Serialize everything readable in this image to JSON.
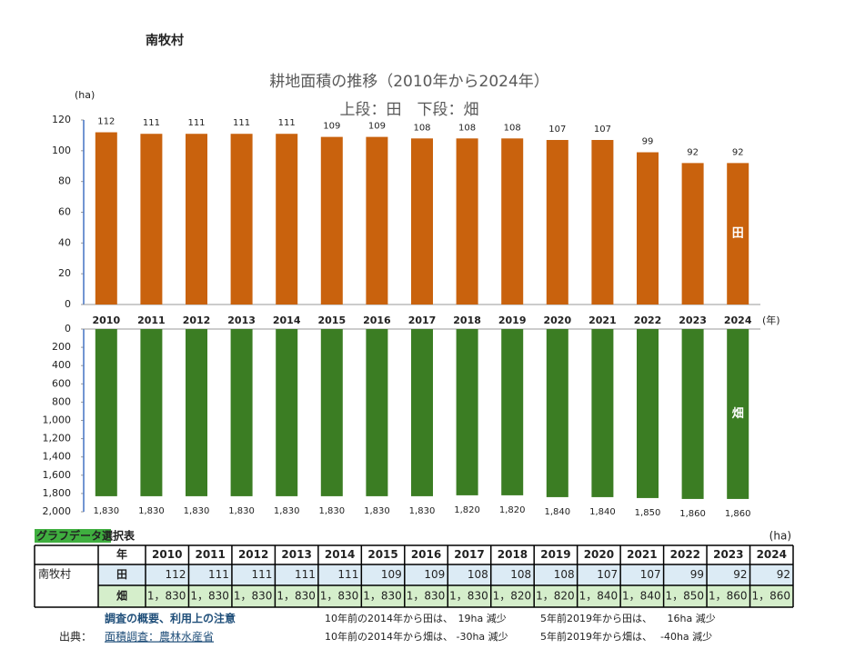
{
  "page_title": "南牧村",
  "chart_data": [
    {
      "type": "bar",
      "title": "耕地面積の推移（2010年から2024年）",
      "subtitle": "上段：田　下段：畑",
      "y_label": "(ha)",
      "x_label": "(年)",
      "categories": [
        "2010",
        "2011",
        "2012",
        "2013",
        "2014",
        "2015",
        "2016",
        "2017",
        "2018",
        "2019",
        "2020",
        "2021",
        "2022",
        "2023",
        "2024"
      ],
      "series": [
        {
          "name": "田",
          "color": "#c9620d",
          "values": [
            112,
            111,
            111,
            111,
            111,
            109,
            109,
            108,
            108,
            108,
            107,
            107,
            99,
            92,
            92
          ]
        }
      ],
      "ylim": [
        0,
        120
      ],
      "yticks": [
        0,
        20,
        40,
        60,
        80,
        100,
        120
      ],
      "grid": false,
      "inverted": false
    },
    {
      "type": "bar",
      "series": [
        {
          "name": "畑",
          "color": "#3b7d23",
          "values": [
            1830,
            1830,
            1830,
            1830,
            1830,
            1830,
            1830,
            1830,
            1820,
            1820,
            1840,
            1840,
            1850,
            1860,
            1860
          ],
          "value_labels": [
            "1,830",
            "1,830",
            "1,830",
            "1,830",
            "1,830",
            "1,830",
            "1,830",
            "1,830",
            "1,820",
            "1,820",
            "1,840",
            "1,840",
            "1,850",
            "1,860",
            "1,860"
          ]
        }
      ],
      "ylim": [
        0,
        2000
      ],
      "yticks": [
        0,
        200,
        400,
        600,
        800,
        {
          "value": 1000,
          "label": "1,000"
        },
        {
          "value": 1200,
          "label": "1,200"
        },
        {
          "value": 1400,
          "label": "1,400"
        },
        {
          "value": 1600,
          "label": "1,600"
        },
        {
          "value": 1800,
          "label": "1,800"
        },
        {
          "value": 2000,
          "label": "2,000"
        }
      ],
      "grid": false,
      "inverted": true
    }
  ],
  "table": {
    "title": "グラフデータ選択表",
    "unit": "(ha)",
    "region": "南牧村",
    "header": [
      "年",
      "2010",
      "2011",
      "2012",
      "2013",
      "2014",
      "2015",
      "2016",
      "2017",
      "2018",
      "2019",
      "2020",
      "2021",
      "2022",
      "2023",
      "2024"
    ],
    "rows": [
      {
        "label": "田",
        "cells": [
          "112",
          "111",
          "111",
          "111",
          "111",
          "109",
          "109",
          "108",
          "108",
          "108",
          "107",
          "107",
          "99",
          "92",
          "92"
        ]
      },
      {
        "label": "畑",
        "cells": [
          "1，830",
          "1，830",
          "1，830",
          "1，830",
          "1，830",
          "1，830",
          "1，830",
          "1，830",
          "1，820",
          "1，820",
          "1，840",
          "1，840",
          "1，850",
          "1，860",
          "1，860"
        ]
      }
    ]
  },
  "footer": {
    "survey_link": "調査の概要、利用上の注意",
    "source_label": "出典：",
    "source_link": "面積調査：農林水産省",
    "notes": [
      "10年前の2014年から田は、　19ha 減少",
      "5年前2019年から田は、　　16ha 減少",
      "10年前の2014年から畑は、 -30ha 減少",
      "5年前2019年から畑は、　 -40ha 減少"
    ]
  }
}
